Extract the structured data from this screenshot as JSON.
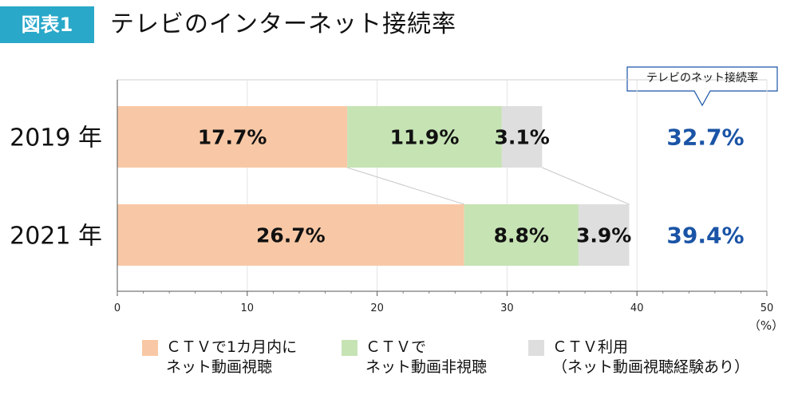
{
  "header": {
    "badge": "図表1",
    "title": "テレビのインターネット接続率"
  },
  "callout": {
    "label": "テレビのネット接続率"
  },
  "colors": {
    "badge_bg": "#29a8c9",
    "orange": "#f8c8a6",
    "green": "#c6e3b4",
    "gray": "#dedede",
    "total_text": "#1a54a6",
    "callout_border": "#1a54a6"
  },
  "chart_data": {
    "type": "bar",
    "orientation": "horizontal",
    "stacked": true,
    "title": "テレビのインターネット接続率",
    "categories": [
      "2019 年",
      "2021 年"
    ],
    "series": [
      {
        "name": "ＣＴＶで1カ月内にネット動画視聴",
        "values": [
          17.7,
          26.7
        ],
        "labels": [
          "17.7%",
          "26.7%"
        ]
      },
      {
        "name": "ＣＴＶでネット動画非視聴",
        "values": [
          11.9,
          8.8
        ],
        "labels": [
          "11.9%",
          "8.8%"
        ]
      },
      {
        "name": "ＣＴＶ利用（ネット動画視聴経験あり）",
        "values": [
          3.1,
          3.9
        ],
        "labels": [
          "3.1%",
          "3.9%"
        ]
      }
    ],
    "totals": {
      "values": [
        32.7,
        39.4
      ],
      "labels": [
        "32.7%",
        "39.4%"
      ]
    },
    "xlim": [
      0,
      50
    ],
    "xticks": [
      "0",
      "10",
      "20",
      "30",
      "40",
      "50"
    ],
    "xlabel": "（%）",
    "grid": true,
    "legend": [
      {
        "line1": "ＣＴＶで1カ月内に",
        "line2": "ネット動画視聴"
      },
      {
        "line1": "ＣＴＶで",
        "line2": "ネット動画非視聴"
      },
      {
        "line1": "ＣＴＶ利用",
        "line2": "（ネット動画視聴経験あり）"
      }
    ]
  }
}
